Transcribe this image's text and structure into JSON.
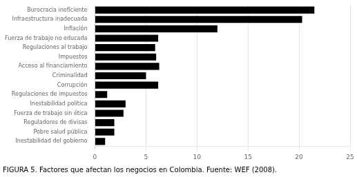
{
  "chart_data": {
    "type": "bar",
    "orientation": "horizontal",
    "title": "FIGURA 5. Factores que afectan los negocios en Colombia. Fuente: WEF (2008).",
    "categories": [
      "Burocracia ineficiente",
      "Infraestructura inadecuada",
      "Inflación",
      "Fuerza de trabajo no educada",
      "Regulaciones al trabajo",
      "Impuestos",
      "Acceso al financiamiento",
      "Criminalidad",
      "Corrupción",
      "Regulaciones de impuestos",
      "Inestabilidad política",
      "Fuerza de trabajo sin ética",
      "Reguladores de divisas",
      "Pobre salud pública",
      "Inestabilidad del gobierno"
    ],
    "values": [
      21.5,
      20.3,
      12.0,
      6.2,
      5.9,
      6.0,
      6.3,
      5.0,
      6.2,
      1.2,
      3.0,
      2.8,
      1.9,
      1.9,
      1.0
    ],
    "color": "#000000",
    "xlim": [
      0,
      25
    ],
    "xticks": [
      0,
      5,
      10,
      15,
      20,
      25
    ],
    "grid": true
  }
}
